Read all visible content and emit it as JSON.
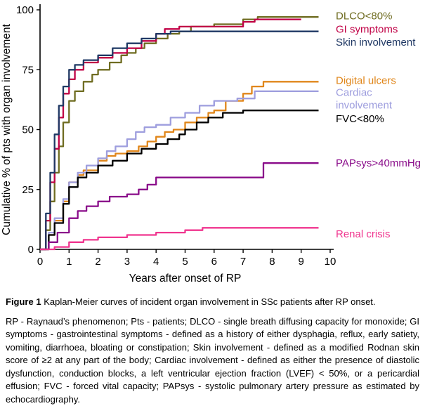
{
  "figure": {
    "caption_label": "Figure 1",
    "caption_text": " Kaplan-Meier curves of incident organ involvement in SSc patients after RP onset.",
    "abbreviations": "RP - Raynaud’s phenomenon; Pts - patients; DLCO - single breath diffusing capacity for monoxide; GI symptoms - gastrointestinal symptoms - defined as a history of either dysphagia, reflux, early satiety, vomiting, diarrhoea, bloating or constipation; Skin involvement - defined as a modified Rodnan skin score of ≥2 at any part of the body; Cardiac involvement - defined as either the presence of diastolic dysfunction, conduction blocks, a left ventricular ejection fraction (LVEF) < 50%, or a pericardial effusion; FVC - forced vital capacity; PAPsys - systolic pulmonary artery pressure as estimated by echocardiography."
  },
  "chart_data": {
    "type": "line",
    "subtype": "kaplan-meier-step",
    "title": "",
    "xlabel": "Years after onset of RP",
    "ylabel": "Cumulative % of pts with organ involvement",
    "xlim": [
      0,
      10
    ],
    "ylim": [
      0,
      100
    ],
    "xticks": [
      0,
      1,
      2,
      3,
      4,
      5,
      6,
      7,
      8,
      9,
      10
    ],
    "yticks": [
      0,
      25,
      50,
      75,
      100
    ],
    "grid": false,
    "legend_position": "right-of-plot",
    "series": [
      {
        "name": "DLCO<80%",
        "color": "#6f6c21",
        "label_lines": [
          "DLCO<80%"
        ],
        "label_at": 97.5,
        "points": [
          [
            0,
            0
          ],
          [
            0.2,
            8
          ],
          [
            0.35,
            20
          ],
          [
            0.5,
            32
          ],
          [
            0.65,
            43
          ],
          [
            0.8,
            53
          ],
          [
            1,
            62
          ],
          [
            1.2,
            66
          ],
          [
            1.5,
            70
          ],
          [
            1.8,
            73
          ],
          [
            2,
            75
          ],
          [
            2.4,
            78
          ],
          [
            2.8,
            81
          ],
          [
            3,
            82
          ],
          [
            3.3,
            84
          ],
          [
            3.6,
            86
          ],
          [
            4,
            88
          ],
          [
            4.4,
            90
          ],
          [
            4.8,
            91
          ],
          [
            5.2,
            93
          ],
          [
            6,
            94
          ],
          [
            7,
            96
          ],
          [
            7.5,
            97
          ],
          [
            9.6,
            97
          ]
        ]
      },
      {
        "name": "GI symptoms",
        "color": "#c00045",
        "label_lines": [
          "GI symptoms"
        ],
        "label_at": 92,
        "points": [
          [
            0,
            0
          ],
          [
            0.2,
            12
          ],
          [
            0.35,
            28
          ],
          [
            0.5,
            42
          ],
          [
            0.65,
            55
          ],
          [
            0.8,
            65
          ],
          [
            1,
            71
          ],
          [
            1.2,
            75
          ],
          [
            1.5,
            78
          ],
          [
            2,
            80
          ],
          [
            2.5,
            82
          ],
          [
            3,
            84
          ],
          [
            3.5,
            87
          ],
          [
            4,
            90
          ],
          [
            4.3,
            92
          ],
          [
            4.8,
            93
          ],
          [
            6.5,
            93
          ],
          [
            7,
            95
          ],
          [
            7.4,
            96
          ],
          [
            9,
            96
          ]
        ]
      },
      {
        "name": "Skin involvement",
        "color": "#1f3864",
        "label_lines": [
          "Skin involvement"
        ],
        "label_at": 86.5,
        "points": [
          [
            0,
            0
          ],
          [
            0.2,
            15
          ],
          [
            0.35,
            32
          ],
          [
            0.5,
            48
          ],
          [
            0.65,
            60
          ],
          [
            0.8,
            68
          ],
          [
            1,
            75
          ],
          [
            1.2,
            77
          ],
          [
            1.5,
            79
          ],
          [
            2,
            81
          ],
          [
            2.5,
            84
          ],
          [
            3,
            86
          ],
          [
            3.5,
            88
          ],
          [
            4,
            90
          ],
          [
            4.5,
            91
          ],
          [
            9.6,
            91
          ]
        ]
      },
      {
        "name": "Digital ulcers",
        "color": "#e0861a",
        "label_lines": [
          "Digital ulcers"
        ],
        "label_at": 70.5,
        "points": [
          [
            0,
            0
          ],
          [
            0.3,
            6
          ],
          [
            0.5,
            12
          ],
          [
            0.8,
            20
          ],
          [
            1,
            28
          ],
          [
            1.3,
            31
          ],
          [
            1.5,
            33
          ],
          [
            2,
            37
          ],
          [
            2.3,
            39
          ],
          [
            2.6,
            40
          ],
          [
            3,
            41
          ],
          [
            3.4,
            43
          ],
          [
            3.7,
            45
          ],
          [
            4,
            47
          ],
          [
            4.3,
            49
          ],
          [
            4.6,
            50
          ],
          [
            5,
            53
          ],
          [
            5.4,
            55
          ],
          [
            5.8,
            57
          ],
          [
            6,
            58
          ],
          [
            6.4,
            62
          ],
          [
            7,
            65
          ],
          [
            7.3,
            68
          ],
          [
            7.7,
            70
          ],
          [
            9.6,
            70
          ]
        ]
      },
      {
        "name": "Cardiac involvement",
        "color": "#9e9ede",
        "label_lines": [
          "Cardiac",
          "involvement"
        ],
        "label_at": 65.5,
        "points": [
          [
            0,
            0
          ],
          [
            0.3,
            7
          ],
          [
            0.5,
            13
          ],
          [
            0.8,
            21
          ],
          [
            1,
            28
          ],
          [
            1.3,
            32
          ],
          [
            1.6,
            35
          ],
          [
            2,
            38
          ],
          [
            2.3,
            41
          ],
          [
            2.6,
            43
          ],
          [
            3,
            46
          ],
          [
            3.3,
            49
          ],
          [
            3.6,
            51
          ],
          [
            4,
            52
          ],
          [
            4.5,
            55
          ],
          [
            5,
            57
          ],
          [
            5.5,
            60
          ],
          [
            6,
            62
          ],
          [
            6.8,
            63
          ],
          [
            7.4,
            66
          ],
          [
            9.6,
            66
          ]
        ]
      },
      {
        "name": "FVC<80%",
        "color": "#000000",
        "label_lines": [
          "FVC<80%"
        ],
        "label_at": 54.5,
        "points": [
          [
            0,
            0
          ],
          [
            0.3,
            6
          ],
          [
            0.5,
            11
          ],
          [
            0.8,
            19
          ],
          [
            1,
            26
          ],
          [
            1.3,
            30
          ],
          [
            1.6,
            32
          ],
          [
            2,
            35
          ],
          [
            2.5,
            37
          ],
          [
            3,
            40
          ],
          [
            3.5,
            42
          ],
          [
            4,
            44
          ],
          [
            4.4,
            46
          ],
          [
            4.8,
            48
          ],
          [
            5,
            50
          ],
          [
            5.4,
            53
          ],
          [
            5.8,
            55
          ],
          [
            6.3,
            57
          ],
          [
            7,
            58
          ],
          [
            9.6,
            58
          ]
        ]
      },
      {
        "name": "PAPsys>40mmHg",
        "color": "#8a0c8a",
        "label_lines": [
          "PAPsys>40mmHg"
        ],
        "label_at": 36,
        "points": [
          [
            0,
            0
          ],
          [
            0.3,
            3
          ],
          [
            0.6,
            7
          ],
          [
            1,
            13
          ],
          [
            1.3,
            16
          ],
          [
            1.6,
            18
          ],
          [
            2,
            20
          ],
          [
            2.4,
            22
          ],
          [
            3,
            23
          ],
          [
            3.4,
            25
          ],
          [
            3.7,
            27
          ],
          [
            4,
            30
          ],
          [
            7.6,
            30
          ],
          [
            7.7,
            36
          ],
          [
            9.6,
            36
          ]
        ]
      },
      {
        "name": "Renal crisis",
        "color": "#f0368f",
        "label_lines": [
          "Renal crisis"
        ],
        "label_at": 6.5,
        "points": [
          [
            0,
            0
          ],
          [
            0.5,
            1
          ],
          [
            1,
            3
          ],
          [
            1.5,
            4
          ],
          [
            2,
            5
          ],
          [
            3,
            6
          ],
          [
            4,
            7
          ],
          [
            5,
            8
          ],
          [
            5.6,
            9
          ],
          [
            9.6,
            9
          ]
        ]
      }
    ]
  }
}
